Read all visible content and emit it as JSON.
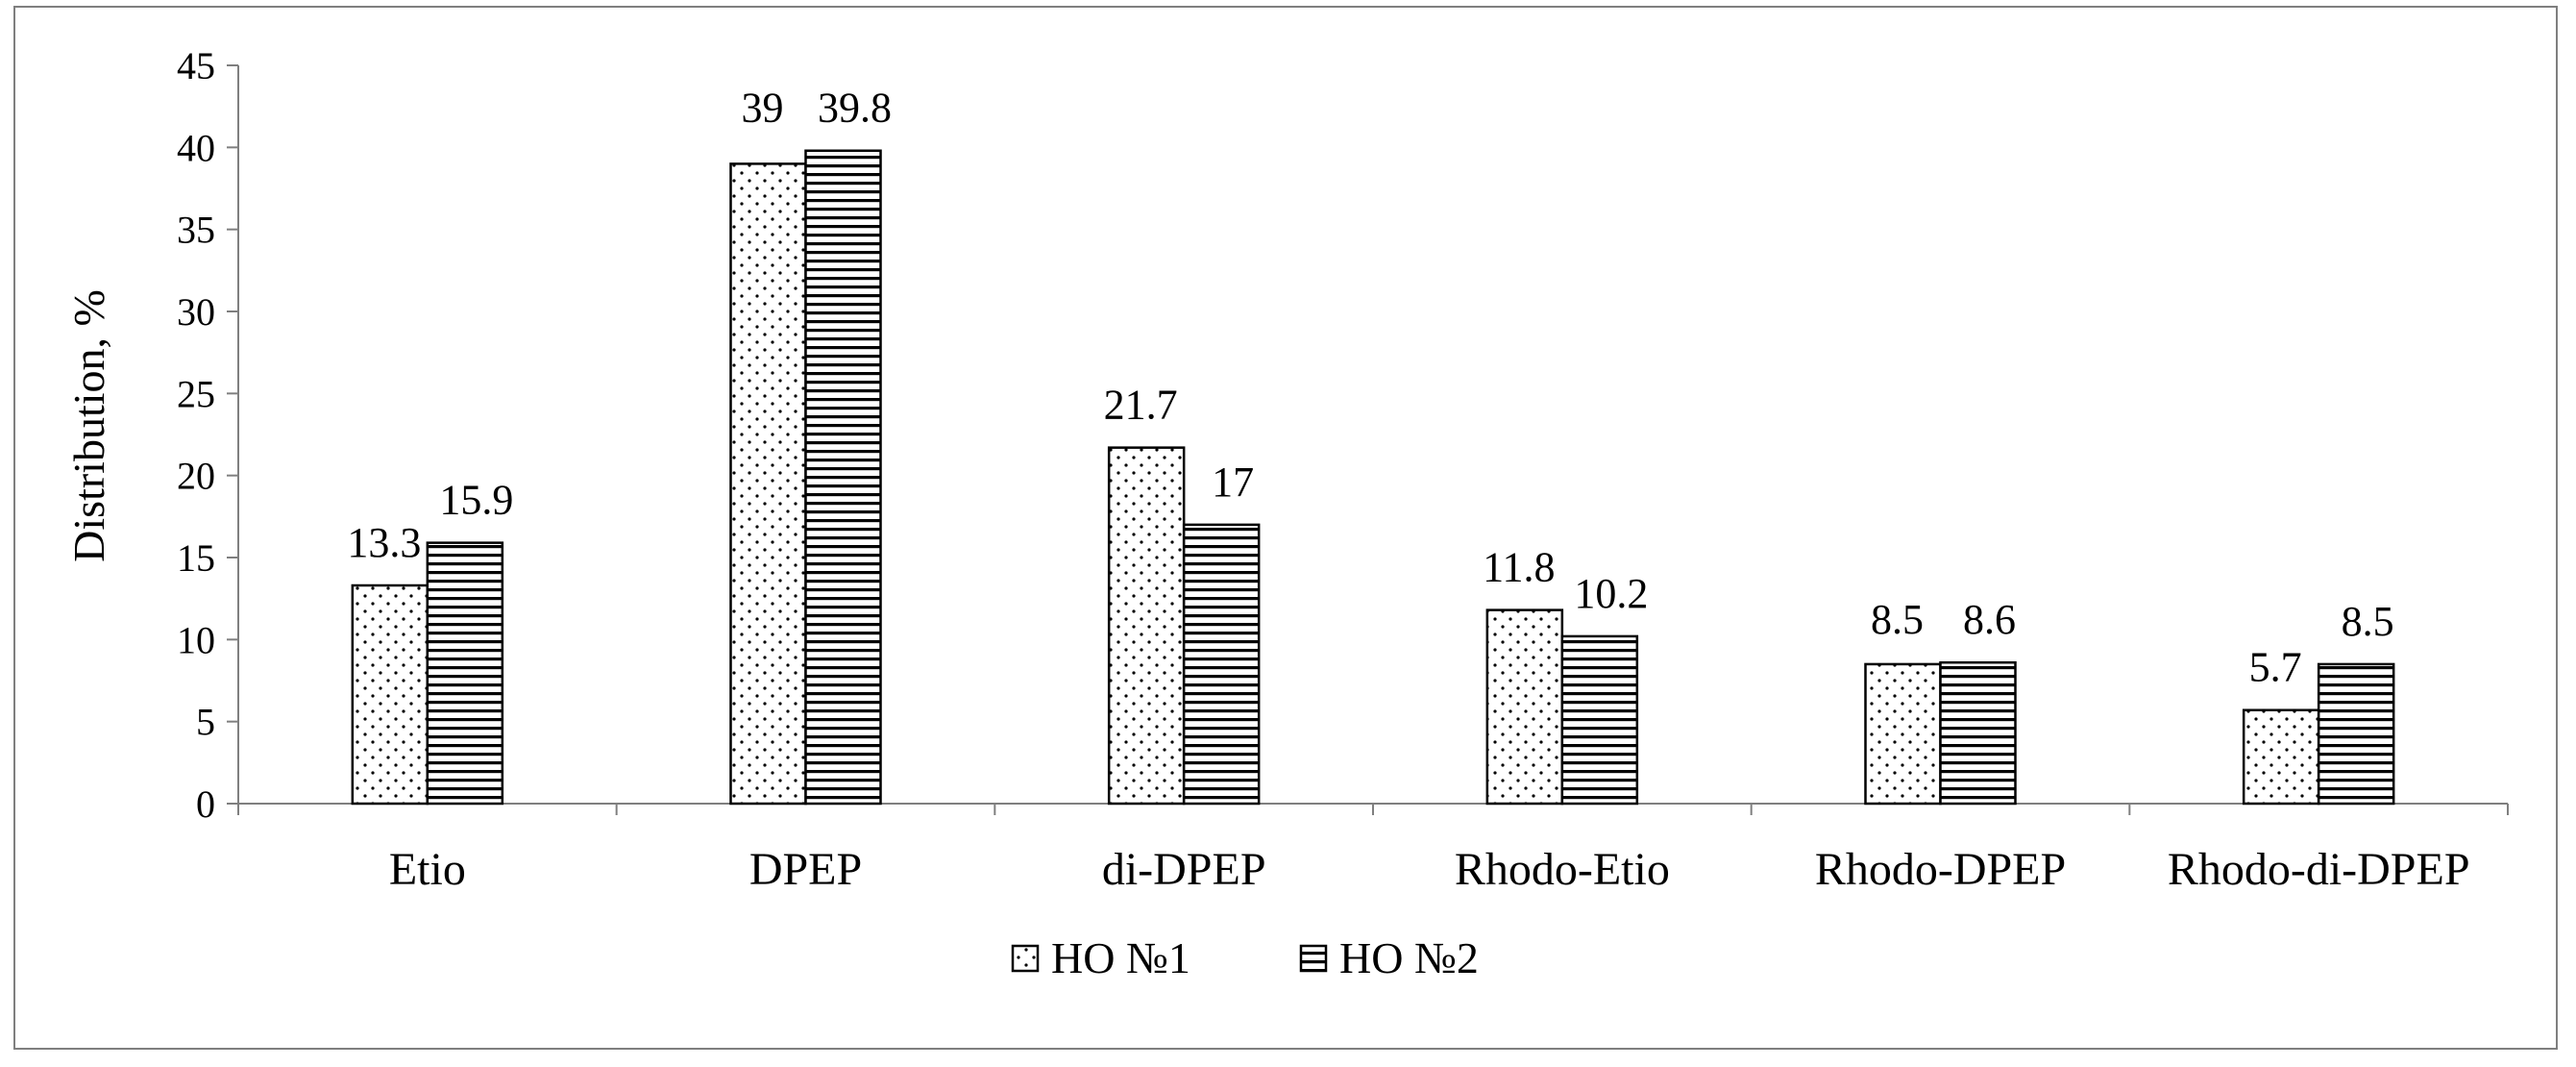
{
  "chart_data": {
    "type": "bar",
    "title": "",
    "xlabel": "",
    "ylabel": "Distribution, %",
    "ylim": [
      0,
      45
    ],
    "yticks": [
      0,
      5,
      10,
      15,
      20,
      25,
      30,
      35,
      40,
      45
    ],
    "grid": false,
    "legend_position": "bottom-center",
    "categories": [
      "Etio",
      "DPEP",
      "di-DPEP",
      "Rhodo-Etio",
      "Rhodo-DPEP",
      "Rhodo-di-DPEP"
    ],
    "series": [
      {
        "name": "НО №1",
        "pattern": "dots",
        "values": [
          13.3,
          39,
          21.7,
          11.8,
          8.5,
          5.7
        ],
        "labels": [
          "13.3",
          "39",
          "21.7",
          "11.8",
          "8.5",
          "5.7"
        ]
      },
      {
        "name": "НО №2",
        "pattern": "horizontal-lines",
        "values": [
          15.9,
          39.8,
          17,
          10.2,
          8.6,
          8.5
        ],
        "labels": [
          "15.9",
          "39.8",
          "17",
          "10.2",
          "8.6",
          "8.5"
        ]
      }
    ],
    "colors": {
      "bar_fill": "#ffffff",
      "bar_stroke": "#000000",
      "axis": "#7f7f7f",
      "frame": "#7f7f7f"
    }
  }
}
